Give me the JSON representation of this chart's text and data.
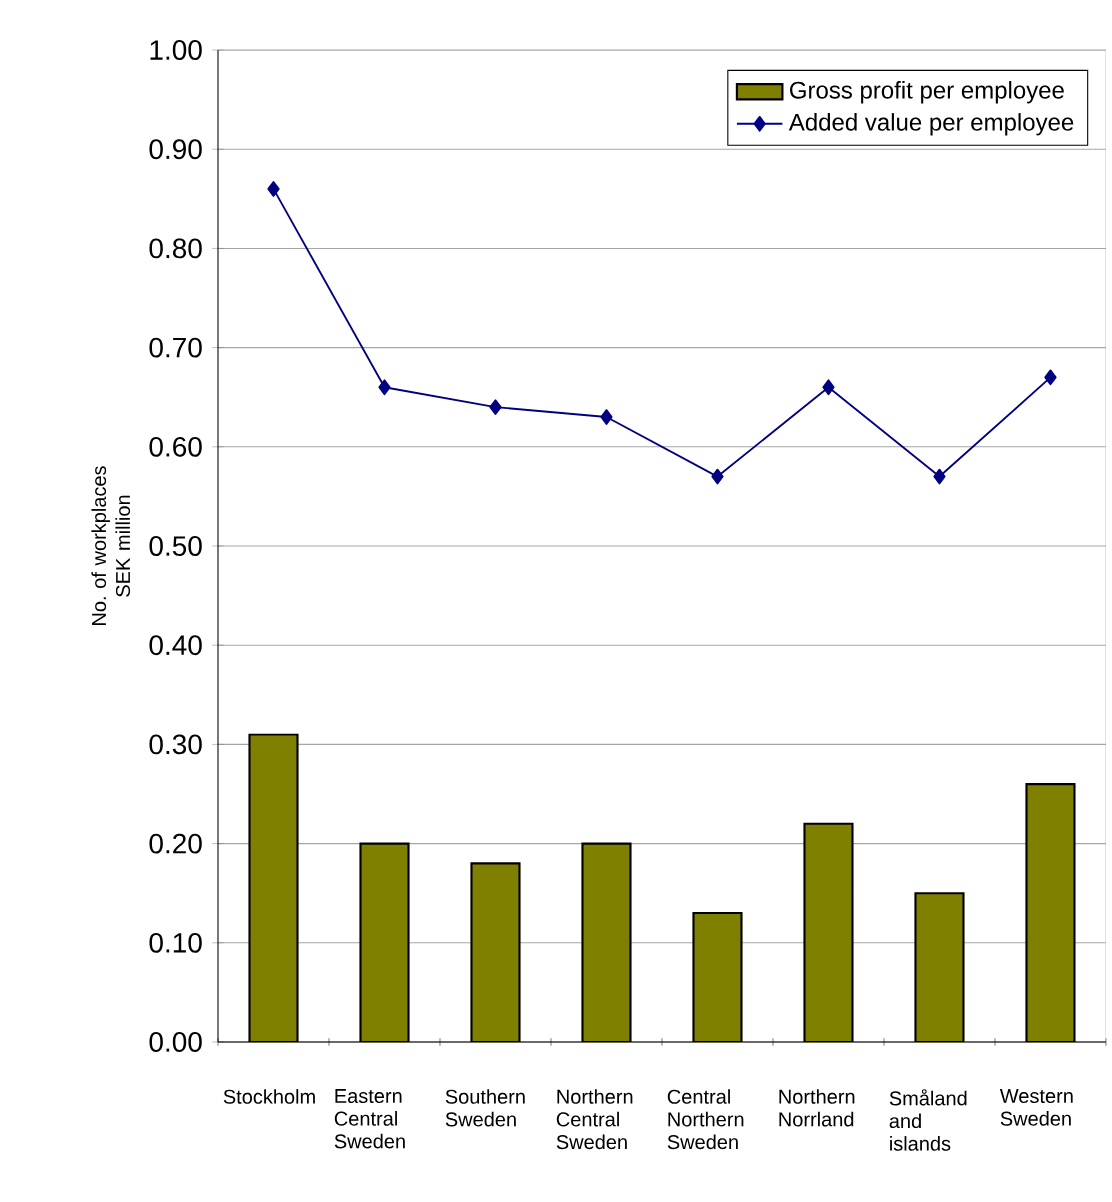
{
  "chart_data": {
    "type": "bar",
    "ylabel": "No. of workplaces SEK million",
    "categories": [
      "Stockholm",
      "Eastern Central Sweden",
      "Southern Sweden",
      "Northern Central Sweden",
      "Central Northern Sweden",
      "Northern Norrland",
      "Småland and islands",
      "Western Sweden"
    ],
    "series": [
      {
        "name": "Gross profit per employee",
        "color": "#808000",
        "values": [
          0.31,
          0.2,
          0.18,
          0.2,
          0.13,
          0.22,
          0.15,
          0.26
        ]
      },
      {
        "name": "Added value per employee",
        "type": "line",
        "color": "#000080",
        "marker": "diamond",
        "values": [
          0.86,
          0.66,
          0.64,
          0.63,
          0.57,
          0.66,
          0.57,
          0.67
        ]
      }
    ],
    "ylim": [
      0,
      1.0
    ],
    "yticks": [
      {
        "value": 0,
        "label": "0.00"
      },
      {
        "value": 0.1,
        "label": "0.10"
      },
      {
        "value": 0.2,
        "label": "0.20"
      },
      {
        "value": 0.3,
        "label": "0.30"
      },
      {
        "value": 0.4,
        "label": "0.40"
      },
      {
        "value": 0.5,
        "label": "0.50"
      },
      {
        "value": 0.6,
        "label": "0.60"
      },
      {
        "value": 0.7,
        "label": "0.70"
      },
      {
        "value": 0.8,
        "label": "0.80"
      },
      {
        "value": 0.9,
        "label": "0.90"
      },
      {
        "value": 1.0,
        "label": "1.00"
      }
    ],
    "grid": "y",
    "legend": "top right"
  }
}
